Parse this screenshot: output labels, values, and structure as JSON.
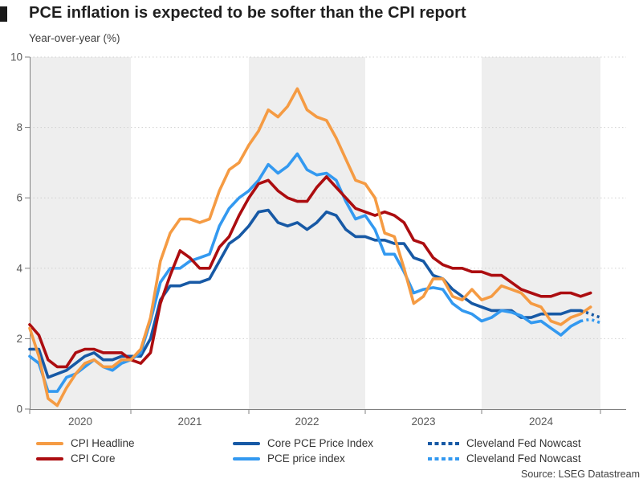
{
  "header": {
    "title": "PCE inflation is expected to be softer than the CPI report",
    "subtitle": "Year-over-year (%)"
  },
  "source": "Source: LSEG Datastream",
  "colors": {
    "cpi_headline": "#F59B43",
    "cpi_core": "#AC0D10",
    "core_pce": "#1759A5",
    "pce": "#3399F0",
    "band": "#EEEEEE",
    "gridline": "#D0D0D0",
    "axis": "#7F7F7F",
    "tick_text": "#595959"
  },
  "chart_data": {
    "type": "line",
    "title": "PCE inflation is expected to be softer than the CPI report",
    "subtitle": "Year-over-year (%)",
    "ylabel": "Year-over-year (%)",
    "ylim": [
      0,
      10
    ],
    "ytick_labels": [
      "0",
      "2",
      "4",
      "6",
      "8",
      "10"
    ],
    "yticks": [
      0,
      2,
      4,
      6,
      8,
      10
    ],
    "xtick_year_labels": [
      "2020",
      "2021",
      "2022",
      "2023",
      "2024"
    ],
    "grid": "horizontal-dotted",
    "legend_position": "bottom",
    "shaded_year_bands": [
      2020,
      2022,
      2024
    ],
    "x_start_month": "2020-02",
    "series": [
      {
        "name": "CPI Headline",
        "color": "#F59B43",
        "style": "solid",
        "start_month": "2020-02",
        "values": [
          2.3,
          1.5,
          0.3,
          0.1,
          0.6,
          1.0,
          1.3,
          1.4,
          1.2,
          1.2,
          1.4,
          1.4,
          1.7,
          2.6,
          4.2,
          5.0,
          5.4,
          5.4,
          5.3,
          5.4,
          6.2,
          6.8,
          7.0,
          7.5,
          7.9,
          8.5,
          8.3,
          8.6,
          9.1,
          8.5,
          8.3,
          8.2,
          7.7,
          7.1,
          6.5,
          6.4,
          6.0,
          5.0,
          4.9,
          4.0,
          3.0,
          3.2,
          3.7,
          3.7,
          3.2,
          3.1,
          3.4,
          3.1,
          3.2,
          3.5,
          3.4,
          3.3,
          3.0,
          2.9,
          2.5,
          2.4,
          2.6,
          2.7,
          2.9
        ]
      },
      {
        "name": "CPI Core",
        "color": "#AC0D10",
        "style": "solid",
        "start_month": "2020-02",
        "values": [
          2.4,
          2.1,
          1.4,
          1.2,
          1.2,
          1.6,
          1.7,
          1.7,
          1.6,
          1.6,
          1.6,
          1.4,
          1.3,
          1.6,
          3.0,
          3.8,
          4.5,
          4.3,
          4.0,
          4.0,
          4.6,
          4.9,
          5.5,
          6.0,
          6.4,
          6.5,
          6.2,
          6.0,
          5.9,
          5.9,
          6.3,
          6.6,
          6.3,
          6.0,
          5.7,
          5.6,
          5.5,
          5.6,
          5.5,
          5.3,
          4.8,
          4.7,
          4.3,
          4.1,
          4.0,
          4.0,
          3.9,
          3.9,
          3.8,
          3.8,
          3.6,
          3.4,
          3.3,
          3.2,
          3.2,
          3.3,
          3.3,
          3.2,
          3.3
        ]
      },
      {
        "name": "Core PCE Price Index",
        "color": "#1759A5",
        "style": "solid",
        "start_month": "2020-02",
        "values": [
          1.7,
          1.7,
          0.9,
          1.0,
          1.1,
          1.3,
          1.5,
          1.6,
          1.4,
          1.4,
          1.5,
          1.5,
          1.5,
          2.0,
          3.1,
          3.5,
          3.5,
          3.6,
          3.6,
          3.7,
          4.2,
          4.7,
          4.9,
          5.2,
          5.6,
          5.65,
          5.3,
          5.2,
          5.3,
          5.1,
          5.3,
          5.6,
          5.5,
          5.1,
          4.9,
          4.9,
          4.8,
          4.8,
          4.7,
          4.7,
          4.3,
          4.2,
          3.8,
          3.7,
          3.4,
          3.2,
          3.0,
          2.9,
          2.8,
          2.8,
          2.8,
          2.6,
          2.6,
          2.7,
          2.7,
          2.7,
          2.8,
          2.8
        ]
      },
      {
        "name": "PCE price index",
        "color": "#3399F0",
        "style": "solid",
        "start_month": "2020-02",
        "values": [
          1.5,
          1.3,
          0.5,
          0.5,
          0.9,
          1.0,
          1.2,
          1.4,
          1.2,
          1.1,
          1.3,
          1.4,
          1.6,
          2.5,
          3.6,
          4.0,
          4.0,
          4.2,
          4.3,
          4.4,
          5.2,
          5.7,
          6.0,
          6.2,
          6.5,
          6.95,
          6.7,
          6.9,
          7.25,
          6.8,
          6.65,
          6.7,
          6.5,
          5.9,
          5.4,
          5.5,
          5.1,
          4.4,
          4.4,
          3.9,
          3.3,
          3.4,
          3.45,
          3.4,
          3.0,
          2.8,
          2.7,
          2.5,
          2.6,
          2.8,
          2.75,
          2.65,
          2.45,
          2.5,
          2.3,
          2.1,
          2.35,
          2.5
        ]
      },
      {
        "name": "Cleveland Fed Nowcast",
        "color": "#1759A5",
        "style": "dotted",
        "start_month": "2024-11",
        "values": [
          2.8,
          2.7,
          2.6
        ]
      },
      {
        "name": "Cleveland Fed Nowcast",
        "color": "#3399F0",
        "style": "dotted",
        "start_month": "2024-11",
        "values": [
          2.5,
          2.55,
          2.45
        ]
      }
    ]
  },
  "legend": {
    "items": [
      {
        "label": "CPI Headline",
        "color": "#F59B43",
        "style": "solid"
      },
      {
        "label": "CPI Core",
        "color": "#AC0D10",
        "style": "solid"
      },
      {
        "label": "Core PCE Price Index",
        "color": "#1759A5",
        "style": "solid"
      },
      {
        "label": "PCE price index",
        "color": "#3399F0",
        "style": "solid"
      },
      {
        "label": "Cleveland Fed Nowcast",
        "color": "#1759A5",
        "style": "dotted"
      },
      {
        "label": "Cleveland Fed Nowcast",
        "color": "#3399F0",
        "style": "dotted"
      }
    ]
  }
}
